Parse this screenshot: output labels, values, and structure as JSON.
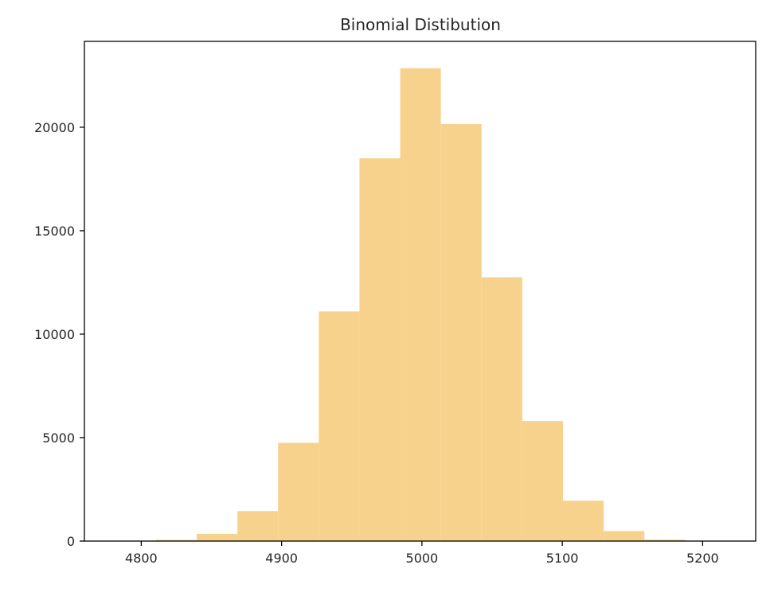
{
  "chart_data": {
    "type": "bar",
    "title": "Binomial Distibution",
    "xlabel": "",
    "ylabel": "",
    "xlim": [
      4759.5,
      5237.8
    ],
    "ylim": [
      0,
      24150
    ],
    "xticks": [
      4800,
      4900,
      5000,
      5100,
      5200
    ],
    "yticks": [
      0,
      5000,
      10000,
      15000,
      20000
    ],
    "grid": false,
    "bar_color": "#f7d28c",
    "bins": [
      {
        "x0": 4781.5,
        "x1": 4810.5,
        "value": 5
      },
      {
        "x0": 4810.5,
        "x1": 4839.5,
        "value": 60
      },
      {
        "x0": 4839.5,
        "x1": 4868.5,
        "value": 350
      },
      {
        "x0": 4868.5,
        "x1": 4897.5,
        "value": 1450
      },
      {
        "x0": 4897.5,
        "x1": 4926.5,
        "value": 4750
      },
      {
        "x0": 4926.5,
        "x1": 4955.5,
        "value": 11100
      },
      {
        "x0": 4955.5,
        "x1": 4984.5,
        "value": 18500
      },
      {
        "x0": 4984.5,
        "x1": 5013.5,
        "value": 22850
      },
      {
        "x0": 5013.5,
        "x1": 5042.5,
        "value": 20150
      },
      {
        "x0": 5042.5,
        "x1": 5071.5,
        "value": 12750
      },
      {
        "x0": 5071.5,
        "x1": 5100.5,
        "value": 5800
      },
      {
        "x0": 5100.5,
        "x1": 5129.5,
        "value": 1950
      },
      {
        "x0": 5129.5,
        "x1": 5158.5,
        "value": 480
      },
      {
        "x0": 5158.5,
        "x1": 5187.5,
        "value": 70
      },
      {
        "x0": 5187.5,
        "x1": 5216.5,
        "value": 8
      }
    ]
  }
}
